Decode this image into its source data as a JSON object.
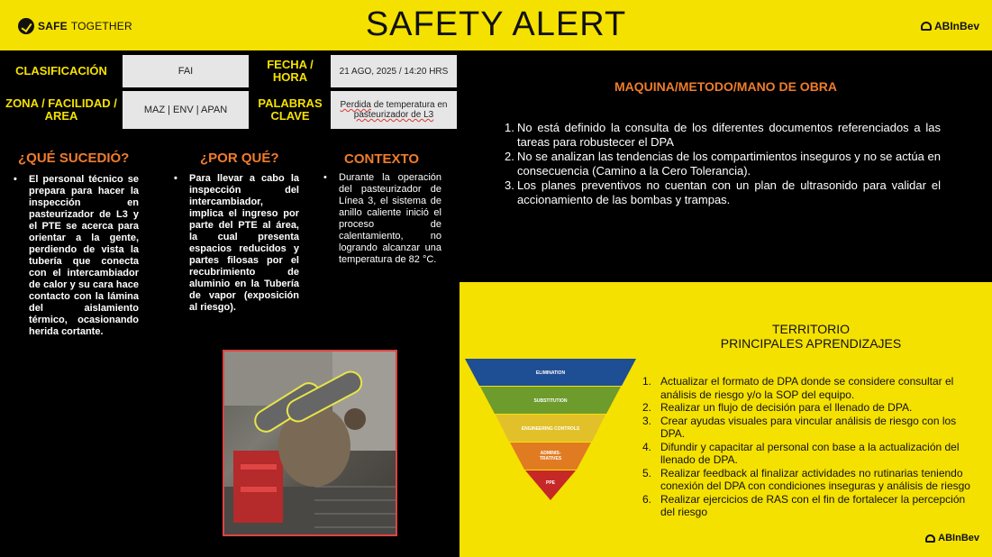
{
  "header": {
    "logo_left_part1": "SAFE",
    "logo_left_part2": "TOGETHER",
    "title": "SAFETY ALERT",
    "logo_right": "ABInBev"
  },
  "info": {
    "clasificacion_label": "CLASIFICACIÓN",
    "clasificacion_value": "FAI",
    "fecha_label": "FECHA / HORA",
    "fecha_value": "21 AGO, 2025 / 14:20 HRS",
    "zona_label": "ZONA / FACILIDAD / AREA",
    "zona_value": "MAZ | ENV | APAN",
    "palabras_label": "PALABRAS CLAVE",
    "palabras_value_1": "Perdida",
    "palabras_value_2": " de temperatura  en ",
    "palabras_value_3": "pasteurizador de L3"
  },
  "que_sucedio": {
    "heading": "¿QUÉ SUCEDIÓ?",
    "text": "El personal técnico se prepara para hacer la inspección en pasteurizador de L3 y el PTE se acerca para orientar a la gente, perdiendo de vista la tubería que conecta con el intercambiador de calor y su cara hace contacto con la lámina del aislamiento térmico, ocasionando herida cortante."
  },
  "por_que": {
    "heading": "¿POR QUÉ?",
    "text": "Para llevar a cabo la inspección del intercambiador, implica el ingreso por parte del PTE al área, la cual presenta espacios reducidos y partes filosas por el recubrimiento de aluminio en la Tubería de vapor (exposición al riesgo)."
  },
  "contexto": {
    "heading": "CONTEXTO",
    "text": "Durante la operación del pasteurizador de Línea 3, el sistema de anillo caliente inició el proceso de calentamiento, no logrando alcanzar una temperatura de 82 °C."
  },
  "maquina": {
    "heading": "MAQUINA/METODO/MANO DE OBRA",
    "items": [
      "No está definido la consulta de los diferentes documentos referenciados a las tareas para robustecer el DPA",
      "No se analizan las tendencias de los compartimientos inseguros y no se actúa en consecuencia (Camino a la Cero Tolerancia).",
      "Los planes preventivos no cuentan con un plan de ultrasonido para validar el accionamiento de las bombas y trampas."
    ]
  },
  "aprendizajes": {
    "heading_line1": "TERRITORIO",
    "heading_line2": "PRINCIPALES APRENDIZAJES",
    "items": [
      "Actualizar el formato de DPA donde se considere consultar el análisis de riesgo y/o la SOP del equipo.",
      "Realizar un flujo de decisión para el llenado de DPA.",
      "Crear ayudas visuales para vincular análisis de riesgo con los DPA.",
      "Difundir y capacitar al personal con base a la actualización del llenado de DPA.",
      "Realizar  feedback al finalizar actividades no rutinarias teniendo conexión del DPA con condiciones inseguras y análisis de riesgo",
      "Realizar ejercicios de RAS con el fin de fortalecer la percepción del riesgo"
    ]
  },
  "pyramid": {
    "levels": [
      {
        "label": "ELIMINATION",
        "color": "#1e4e93"
      },
      {
        "label": "SUBSTITUTION",
        "color": "#6d9b2c"
      },
      {
        "label": "ENGINEERING CONTROLS",
        "color": "#e1c02a"
      },
      {
        "label_line1": "ADMINIS-",
        "label_line2": "TRATIVES",
        "color": "#e07b22"
      },
      {
        "label": "PPE",
        "color": "#c62828"
      }
    ]
  },
  "footer_logo": "ABInBev",
  "colors": {
    "yellow": "#f5e100",
    "orange_heading": "#f07c2a",
    "black": "#000000"
  }
}
